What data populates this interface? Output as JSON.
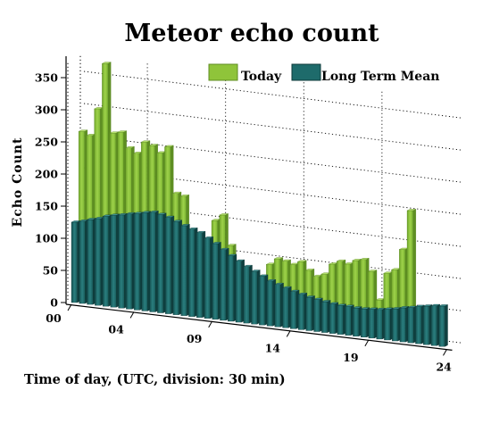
{
  "chart_data": {
    "type": "bar",
    "title": "Meteor echo count",
    "ylabel": "Echo Count",
    "xlabel": "Time of day, (UTC, division: 30 min)",
    "ylim": [
      0,
      375
    ],
    "yticks": [
      0,
      50,
      100,
      150,
      200,
      250,
      300,
      350
    ],
    "xticks": [
      {
        "label": "00",
        "bin": 0
      },
      {
        "label": "04",
        "bin": 8
      },
      {
        "label": "09",
        "bin": 18
      },
      {
        "label": "14",
        "bin": 28
      },
      {
        "label": "19",
        "bin": 38
      },
      {
        "label": "24",
        "bin": 48
      }
    ],
    "grid": true,
    "legend_position": "top-right",
    "series": [
      {
        "name": "Today",
        "color": "#8fc43a",
        "values": [
          262,
          257,
          300,
          372,
          265,
          268,
          245,
          238,
          257,
          253,
          243,
          254,
          183,
          180,
          82,
          100,
          115,
          148,
          158,
          112,
          72,
          68,
          65,
          70,
          90,
          100,
          98,
          94,
          100,
          88,
          80,
          85,
          102,
          108,
          105,
          112,
          115,
          98,
          55,
          98,
          105,
          138,
          200,
          8,
          0,
          0,
          0,
          0
        ]
      },
      {
        "name": "Long Term Mean",
        "color": "#1e6b6b",
        "values": [
          125,
          128,
          132,
          135,
          140,
          143,
          145,
          148,
          150,
          153,
          155,
          153,
          150,
          145,
          140,
          136,
          132,
          125,
          118,
          110,
          102,
          95,
          88,
          82,
          76,
          70,
          66,
          62,
          58,
          55,
          52,
          50,
          48,
          46,
          45,
          45,
          44,
          44,
          45,
          46,
          48,
          50,
          53,
          55,
          58,
          60,
          62,
          63
        ]
      }
    ]
  }
}
